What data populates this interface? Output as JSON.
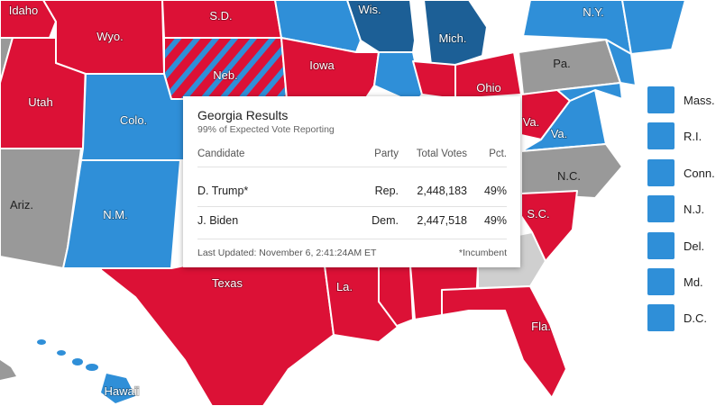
{
  "colors": {
    "republican": "#dc1136",
    "democrat": "#2f8fd8",
    "democrat_dark": "#1c5f96",
    "undecided": "#999999",
    "georgia": "#cfcfcf"
  },
  "map": {
    "labels": {
      "idaho": "Idaho",
      "wyo": "Wyo.",
      "sd": "S.D.",
      "wis": "Wis.",
      "mich": "Mich.",
      "ny": "N.Y.",
      "neb": "Neb.",
      "iowa": "Iowa",
      "pa": "Pa.",
      "utah": "Utah",
      "colo": "Colo.",
      "ohio": "Ohio",
      "va_partial": "Va.",
      "va": "Va.",
      "nc": "N.C.",
      "ariz": "Ariz.",
      "nm": "N.M.",
      "sc": "S.C.",
      "texas": "Texas",
      "la": "La.",
      "fla": "Fla.",
      "hawaii": "Hawaii"
    }
  },
  "legend": {
    "items": [
      {
        "label": "Mass.",
        "party": "democrat"
      },
      {
        "label": "R.I.",
        "party": "democrat"
      },
      {
        "label": "Conn.",
        "party": "democrat"
      },
      {
        "label": "N.J.",
        "party": "democrat"
      },
      {
        "label": "Del.",
        "party": "democrat"
      },
      {
        "label": "Md.",
        "party": "democrat"
      },
      {
        "label": "D.C.",
        "party": "democrat"
      }
    ]
  },
  "popup": {
    "title": "Georgia Results",
    "subtitle": "99% of Expected Vote Reporting",
    "headers": {
      "candidate": "Candidate",
      "party": "Party",
      "votes": "Total Votes",
      "pct": "Pct."
    },
    "rows": [
      {
        "candidate": "D. Trump*",
        "party": "Rep.",
        "votes": "2,448,183",
        "pct": "49%"
      },
      {
        "candidate": "J. Biden",
        "party": "Dem.",
        "votes": "2,447,518",
        "pct": "49%"
      }
    ],
    "updated": "Last Updated: November 6, 2:41:24AM ET",
    "incumbent_note": "*Incumbent"
  }
}
